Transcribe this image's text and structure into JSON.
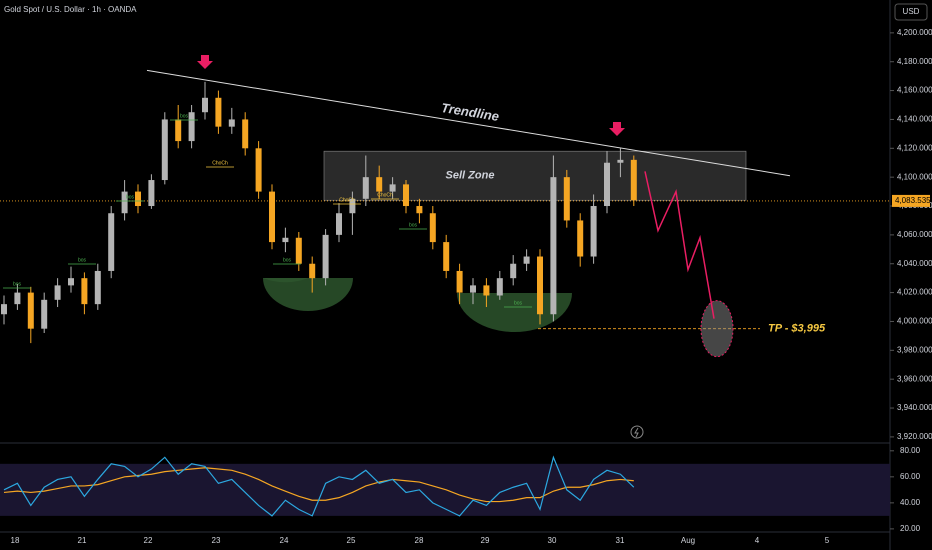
{
  "chart_data": {
    "type": "candlestick",
    "title": "Gold Spot / U.S. Dollar · 1h · OANDA",
    "currency": "USD",
    "up_color": "#b4b4b4",
    "down_color": "#f5a623",
    "open": [
      4005,
      4012,
      4020,
      3995,
      4015,
      4025,
      4030,
      4012,
      4035,
      4075,
      4090,
      4080,
      4098,
      4140,
      4125,
      4145,
      4155,
      4135,
      4140,
      4120,
      4090,
      4055,
      4058,
      4040,
      4030,
      4060,
      4075,
      4085,
      4100,
      4090,
      4095,
      4080,
      4075,
      4055,
      4035,
      4020,
      4025,
      4018,
      4030,
      4040,
      4045,
      4005,
      4100,
      4070,
      4045,
      4080,
      4110,
      4112
    ],
    "high": [
      4018,
      4026,
      4024,
      4020,
      4030,
      4038,
      4034,
      4040,
      4080,
      4098,
      4095,
      4102,
      4145,
      4150,
      4150,
      4166,
      4160,
      4148,
      4145,
      4125,
      4095,
      4065,
      4062,
      4045,
      4064,
      4082,
      4090,
      4115,
      4108,
      4100,
      4098,
      4085,
      4080,
      4060,
      4040,
      4030,
      4030,
      4035,
      4046,
      4050,
      4050,
      4115,
      4105,
      4075,
      4088,
      4118,
      4120,
      4115
    ],
    "low": [
      3998,
      4008,
      3985,
      3992,
      4010,
      4020,
      4005,
      4008,
      4030,
      4070,
      4075,
      4078,
      4095,
      4120,
      4120,
      4140,
      4130,
      4130,
      4115,
      4085,
      4050,
      4048,
      4035,
      4020,
      4025,
      4055,
      4060,
      4080,
      4085,
      4085,
      4075,
      4068,
      4050,
      4030,
      4012,
      4012,
      4010,
      4015,
      4025,
      4035,
      3998,
      4000,
      4065,
      4038,
      4040,
      4075,
      4100,
      4080
    ],
    "close": [
      4012,
      4020,
      3995,
      4015,
      4025,
      4030,
      4012,
      4035,
      4075,
      4090,
      4080,
      4098,
      4140,
      4125,
      4145,
      4155,
      4135,
      4140,
      4120,
      4090,
      4055,
      4058,
      4040,
      4030,
      4060,
      4075,
      4085,
      4100,
      4090,
      4095,
      4080,
      4075,
      4055,
      4035,
      4020,
      4025,
      4018,
      4030,
      4040,
      4045,
      4005,
      4100,
      4070,
      4045,
      4080,
      4110,
      4112,
      4084
    ],
    "ylim": [
      3913,
      4220
    ],
    "yticks": [
      {
        "value": 4200,
        "label": "4,200.000"
      },
      {
        "value": 4180,
        "label": "4,180.000"
      },
      {
        "value": 4160,
        "label": "4,160.000"
      },
      {
        "value": 4140,
        "label": "4,140.000"
      },
      {
        "value": 4120,
        "label": "4,120.000"
      },
      {
        "value": 4100,
        "label": "4,100.000"
      },
      {
        "value": 4080,
        "label": "4,080.000"
      },
      {
        "value": 4060,
        "label": "4,060.000"
      },
      {
        "value": 4040,
        "label": "4,040.000"
      },
      {
        "value": 4020,
        "label": "4,020.000"
      },
      {
        "value": 4000,
        "label": "4,000.000"
      },
      {
        "value": 3980,
        "label": "3,980.000"
      },
      {
        "value": 3960,
        "label": "3,960.000"
      },
      {
        "value": 3940,
        "label": "3,940.000"
      },
      {
        "value": 3920,
        "label": "3,920.000"
      }
    ],
    "last_price": {
      "value": 4083.535,
      "label": "4,083.535"
    },
    "categories": [
      "18",
      "21",
      "22",
      "23",
      "24",
      "25",
      "28",
      "29",
      "30",
      "31",
      "Aug",
      "4",
      "5"
    ],
    "trendline": {
      "label": "Trendline",
      "start": 4174,
      "end": 4101
    },
    "sell_zone": {
      "label": "Sell Zone",
      "range": [
        4084,
        4118
      ]
    },
    "target": {
      "label": "TP - $3,995",
      "value": 3995
    },
    "projection": [
      4104,
      4063,
      4090,
      4036,
      4058,
      4002
    ],
    "annotations": [
      "bos",
      "bos",
      "bos",
      "bos",
      "ChoCh",
      "bos",
      "ChoCh",
      "ChoCh",
      "bos",
      "bos"
    ],
    "rsi": {
      "name": "RSI",
      "color": "#2ca8e0",
      "values": [
        50,
        55,
        38,
        52,
        58,
        60,
        45,
        58,
        70,
        68,
        60,
        66,
        75,
        62,
        70,
        68,
        55,
        58,
        48,
        38,
        30,
        42,
        35,
        30,
        55,
        60,
        58,
        65,
        55,
        58,
        48,
        50,
        40,
        35,
        30,
        42,
        38,
        48,
        52,
        55,
        35,
        75,
        50,
        42,
        58,
        65,
        62,
        52
      ],
      "ma_color": "#f5a623",
      "ma": [
        48,
        49,
        48,
        49,
        51,
        53,
        53,
        54,
        57,
        60,
        61,
        62,
        64,
        65,
        66,
        67,
        66,
        65,
        62,
        58,
        53,
        49,
        45,
        42,
        42,
        44,
        48,
        53,
        56,
        58,
        57,
        56,
        53,
        50,
        46,
        43,
        41,
        41,
        42,
        44,
        44,
        49,
        52,
        52,
        54,
        57,
        58,
        57
      ],
      "band": [
        30,
        70
      ],
      "ylim": [
        17.6,
        86
      ],
      "yticks": [
        {
          "value": 80,
          "label": "80.00"
        },
        {
          "value": 60,
          "label": "60.00"
        },
        {
          "value": 40,
          "label": "40.00"
        },
        {
          "value": 20,
          "label": "20.00"
        }
      ]
    }
  }
}
